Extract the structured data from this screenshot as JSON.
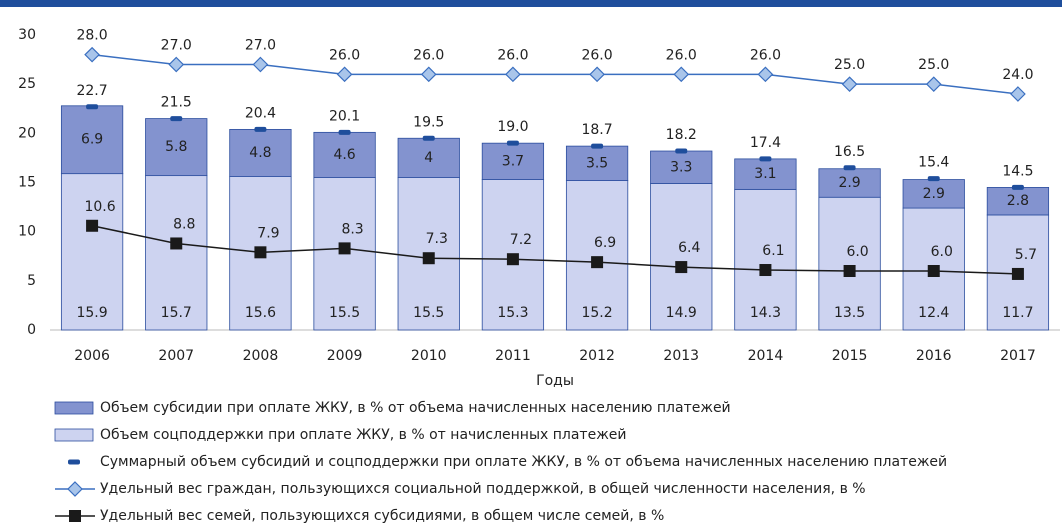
{
  "chart_data": {
    "type": "bar",
    "x_label": "Годы",
    "categories": [
      "2006",
      "2007",
      "2008",
      "2009",
      "2010",
      "2011",
      "2012",
      "2013",
      "2014",
      "2015",
      "2016",
      "2017"
    ],
    "ylim": [
      0,
      30
    ],
    "yticks": [
      0,
      5,
      10,
      15,
      20,
      25,
      30
    ],
    "grid": false,
    "legend": "bottom",
    "series": [
      {
        "name": "Объем субсидии при оплате ЖКУ, в % от объема начисленных населению платежей",
        "type": "bar",
        "stack": 1,
        "color": "#8393cf",
        "values": [
          6.9,
          5.8,
          4.8,
          4.6,
          4.0,
          3.7,
          3.5,
          3.3,
          3.1,
          2.9,
          2.9,
          2.8
        ]
      },
      {
        "name": "Объем соцподдержки при оплате ЖКУ, в % от начисленных платежей",
        "type": "bar",
        "stack": 0,
        "color": "#cdd3f0",
        "values": [
          15.9,
          15.7,
          15.6,
          15.5,
          15.5,
          15.3,
          15.2,
          14.9,
          14.3,
          13.5,
          12.4,
          11.7
        ]
      },
      {
        "name": "Суммарный объем субсидий и соцподдержки при оплате ЖКУ, в % от объема начисленных населению платежей",
        "type": "dash",
        "color": "#1f4e9c",
        "values": [
          22.7,
          21.5,
          20.4,
          20.1,
          19.5,
          19.0,
          18.7,
          18.2,
          17.4,
          16.5,
          15.4,
          14.5
        ],
        "value_labels": [
          "22.7",
          "21.5",
          "20.4",
          "20.1",
          "19.5",
          "19.0",
          "18.7",
          "18.2",
          "17.4",
          "16.5",
          "15.4",
          "14.5"
        ]
      },
      {
        "name": "Удельный вес граждан, пользующихся социальной поддержкой, в общей численности населения, в %",
        "type": "line",
        "marker": "diamond",
        "color": "#3a6fc0",
        "values": [
          28.0,
          27.0,
          27.0,
          26.0,
          26.0,
          26.0,
          26.0,
          26.0,
          26.0,
          25.0,
          25.0,
          24.0
        ],
        "value_labels": [
          "28.0",
          "27.0",
          "27.0",
          "26.0",
          "26.0",
          "26.0",
          "26.0",
          "26.0",
          "26.0",
          "25.0",
          "25.0",
          "24.0"
        ]
      },
      {
        "name": "Удельный вес семей, пользующихся субсидиями, в общем числе семей, в %",
        "type": "line",
        "marker": "square",
        "color": "#1a1a1a",
        "values": [
          10.6,
          8.8,
          7.9,
          8.3,
          7.3,
          7.2,
          6.9,
          6.4,
          6.1,
          6.0,
          6.0,
          5.7
        ],
        "value_labels": [
          "10.6",
          "8.8",
          "7.9",
          "8.3",
          "7.3",
          "7.2",
          "6.9",
          "6.4",
          "6.1",
          "6.0",
          "6.0",
          "5.7"
        ]
      }
    ]
  }
}
